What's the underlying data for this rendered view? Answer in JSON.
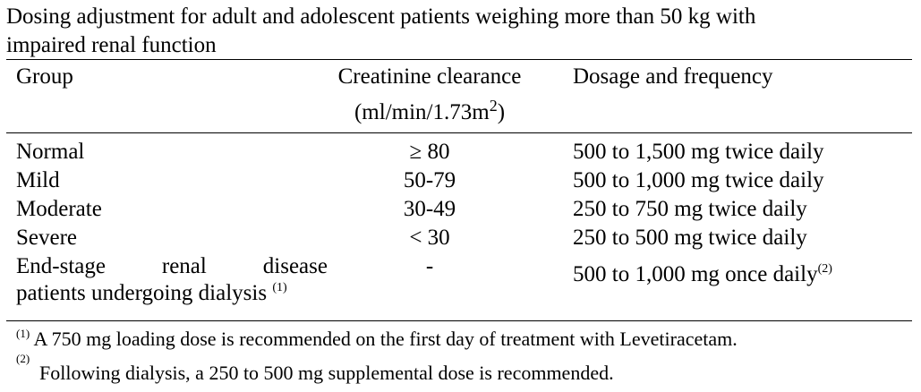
{
  "title": {
    "line1": "Dosing adjustment for adult and adolescent patients weighing more than 50 kg with",
    "line2": "impaired renal function"
  },
  "headers": {
    "group": "Group",
    "clearance_line1": "Creatinine clearance",
    "clearance_line2_pre": "(ml/min/1.73m",
    "clearance_sup": "2",
    "clearance_line2_post": ")",
    "dosage": "Dosage and frequency"
  },
  "rows": [
    {
      "group": "Normal",
      "clearance": "≥ 80",
      "dosage": "500 to 1,500 mg twice daily"
    },
    {
      "group": "Mild",
      "clearance": "50-79",
      "dosage": "500 to 1,000 mg twice daily"
    },
    {
      "group": "Moderate",
      "clearance": "30-49",
      "dosage": "250 to 750 mg twice daily"
    },
    {
      "group": "Severe",
      "clearance": "< 30",
      "dosage": "250 to 500 mg twice daily"
    }
  ],
  "last_row": {
    "group_words": [
      "End-stage",
      "renal",
      "disease"
    ],
    "group_line2": "patients undergoing dialysis",
    "group_note": "(1)",
    "clearance": "-",
    "dosage": "500 to 1,000 mg once daily",
    "dosage_note": "(2)"
  },
  "footnotes": [
    {
      "marker": "(1)",
      "text": " A 750 mg loading dose is recommended on the first day of treatment with Levetiracetam."
    },
    {
      "marker": "(2)",
      "text": "Following dialysis, a 250 to 500 mg supplemental dose is recommended."
    }
  ]
}
